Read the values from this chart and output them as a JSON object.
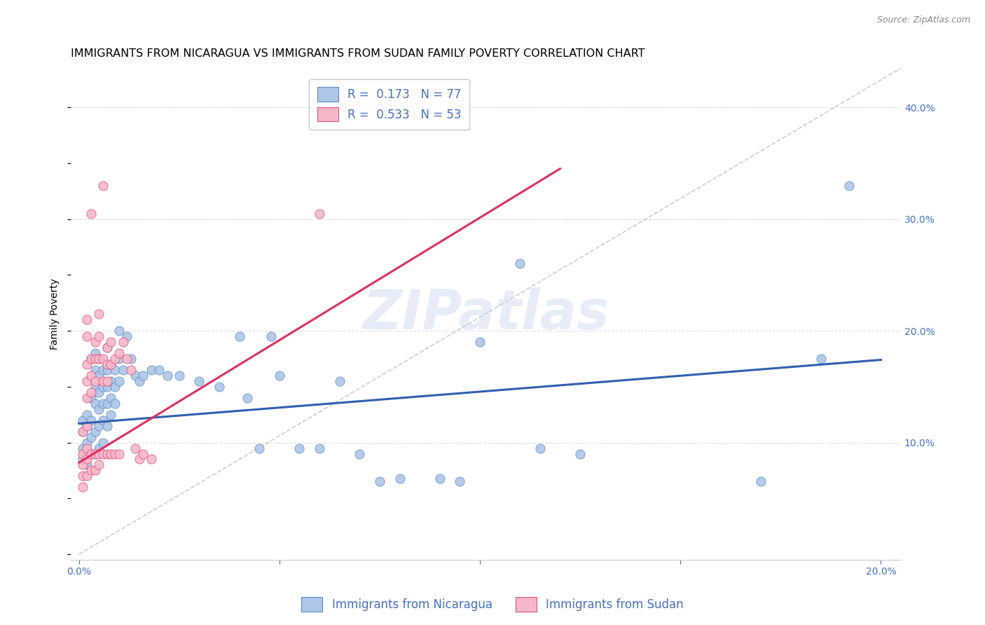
{
  "title": "IMMIGRANTS FROM NICARAGUA VS IMMIGRANTS FROM SUDAN FAMILY POVERTY CORRELATION CHART",
  "source": "Source: ZipAtlas.com",
  "ylabel_label": "Family Poverty",
  "xlim": [
    -0.002,
    0.205
  ],
  "ylim": [
    -0.005,
    0.435
  ],
  "xtick_positions": [
    0.0,
    0.05,
    0.1,
    0.15,
    0.2
  ],
  "xtick_labels": [
    "0.0%",
    "",
    "",
    "",
    "20.0%"
  ],
  "ytick_positions": [
    0.1,
    0.2,
    0.3,
    0.4
  ],
  "ytick_labels": [
    "10.0%",
    "20.0%",
    "30.0%",
    "40.0%"
  ],
  "color_nicaragua_fill": "#aec6e8",
  "color_nicaragua_edge": "#5b8ec4",
  "color_sudan_fill": "#f5b8c8",
  "color_sudan_edge": "#e05080",
  "color_line_nicaragua": "#3060b0",
  "color_line_sudan": "#e03060",
  "color_diagonal": "#bbbbbb",
  "nicaragua_line": [
    0.0,
    0.117,
    0.2,
    0.174
  ],
  "sudan_line": [
    0.0,
    0.082,
    0.12,
    0.345
  ],
  "diagonal_line": [
    0.0,
    0.0,
    0.205,
    0.435
  ],
  "nicaragua_scatter": [
    [
      0.001,
      0.12
    ],
    [
      0.001,
      0.11
    ],
    [
      0.001,
      0.095
    ],
    [
      0.001,
      0.085
    ],
    [
      0.002,
      0.125
    ],
    [
      0.002,
      0.115
    ],
    [
      0.002,
      0.1
    ],
    [
      0.002,
      0.09
    ],
    [
      0.002,
      0.08
    ],
    [
      0.003,
      0.175
    ],
    [
      0.003,
      0.14
    ],
    [
      0.003,
      0.12
    ],
    [
      0.003,
      0.105
    ],
    [
      0.003,
      0.09
    ],
    [
      0.004,
      0.18
    ],
    [
      0.004,
      0.165
    ],
    [
      0.004,
      0.15
    ],
    [
      0.004,
      0.135
    ],
    [
      0.004,
      0.11
    ],
    [
      0.004,
      0.09
    ],
    [
      0.005,
      0.175
    ],
    [
      0.005,
      0.16
    ],
    [
      0.005,
      0.145
    ],
    [
      0.005,
      0.13
    ],
    [
      0.005,
      0.115
    ],
    [
      0.005,
      0.095
    ],
    [
      0.006,
      0.165
    ],
    [
      0.006,
      0.15
    ],
    [
      0.006,
      0.135
    ],
    [
      0.006,
      0.12
    ],
    [
      0.006,
      0.1
    ],
    [
      0.007,
      0.185
    ],
    [
      0.007,
      0.165
    ],
    [
      0.007,
      0.15
    ],
    [
      0.007,
      0.135
    ],
    [
      0.007,
      0.115
    ],
    [
      0.008,
      0.17
    ],
    [
      0.008,
      0.155
    ],
    [
      0.008,
      0.14
    ],
    [
      0.008,
      0.125
    ],
    [
      0.009,
      0.165
    ],
    [
      0.009,
      0.15
    ],
    [
      0.009,
      0.135
    ],
    [
      0.01,
      0.2
    ],
    [
      0.01,
      0.175
    ],
    [
      0.01,
      0.155
    ],
    [
      0.011,
      0.165
    ],
    [
      0.012,
      0.195
    ],
    [
      0.013,
      0.175
    ],
    [
      0.014,
      0.16
    ],
    [
      0.015,
      0.155
    ],
    [
      0.016,
      0.16
    ],
    [
      0.018,
      0.165
    ],
    [
      0.02,
      0.165
    ],
    [
      0.022,
      0.16
    ],
    [
      0.025,
      0.16
    ],
    [
      0.03,
      0.155
    ],
    [
      0.035,
      0.15
    ],
    [
      0.04,
      0.195
    ],
    [
      0.042,
      0.14
    ],
    [
      0.045,
      0.095
    ],
    [
      0.048,
      0.195
    ],
    [
      0.05,
      0.16
    ],
    [
      0.055,
      0.095
    ],
    [
      0.06,
      0.095
    ],
    [
      0.065,
      0.155
    ],
    [
      0.07,
      0.09
    ],
    [
      0.075,
      0.065
    ],
    [
      0.08,
      0.068
    ],
    [
      0.09,
      0.068
    ],
    [
      0.095,
      0.065
    ],
    [
      0.1,
      0.19
    ],
    [
      0.11,
      0.26
    ],
    [
      0.115,
      0.095
    ],
    [
      0.125,
      0.09
    ],
    [
      0.17,
      0.065
    ],
    [
      0.185,
      0.175
    ],
    [
      0.192,
      0.33
    ]
  ],
  "sudan_scatter": [
    [
      0.001,
      0.11
    ],
    [
      0.001,
      0.09
    ],
    [
      0.001,
      0.08
    ],
    [
      0.001,
      0.07
    ],
    [
      0.001,
      0.06
    ],
    [
      0.002,
      0.21
    ],
    [
      0.002,
      0.195
    ],
    [
      0.002,
      0.17
    ],
    [
      0.002,
      0.155
    ],
    [
      0.002,
      0.14
    ],
    [
      0.002,
      0.115
    ],
    [
      0.002,
      0.095
    ],
    [
      0.002,
      0.085
    ],
    [
      0.002,
      0.07
    ],
    [
      0.003,
      0.305
    ],
    [
      0.003,
      0.175
    ],
    [
      0.003,
      0.16
    ],
    [
      0.003,
      0.145
    ],
    [
      0.003,
      0.09
    ],
    [
      0.003,
      0.075
    ],
    [
      0.004,
      0.19
    ],
    [
      0.004,
      0.175
    ],
    [
      0.004,
      0.155
    ],
    [
      0.004,
      0.09
    ],
    [
      0.004,
      0.075
    ],
    [
      0.005,
      0.215
    ],
    [
      0.005,
      0.195
    ],
    [
      0.005,
      0.175
    ],
    [
      0.005,
      0.09
    ],
    [
      0.005,
      0.08
    ],
    [
      0.006,
      0.33
    ],
    [
      0.006,
      0.175
    ],
    [
      0.006,
      0.155
    ],
    [
      0.006,
      0.09
    ],
    [
      0.007,
      0.185
    ],
    [
      0.007,
      0.17
    ],
    [
      0.007,
      0.155
    ],
    [
      0.007,
      0.09
    ],
    [
      0.008,
      0.19
    ],
    [
      0.008,
      0.17
    ],
    [
      0.008,
      0.09
    ],
    [
      0.009,
      0.175
    ],
    [
      0.009,
      0.09
    ],
    [
      0.01,
      0.18
    ],
    [
      0.01,
      0.09
    ],
    [
      0.011,
      0.19
    ],
    [
      0.012,
      0.175
    ],
    [
      0.013,
      0.165
    ],
    [
      0.014,
      0.095
    ],
    [
      0.015,
      0.085
    ],
    [
      0.016,
      0.09
    ],
    [
      0.018,
      0.085
    ],
    [
      0.06,
      0.305
    ]
  ],
  "title_fontsize": 11.5,
  "source_fontsize": 9,
  "axis_label_fontsize": 10,
  "tick_fontsize": 10,
  "legend_fontsize": 12,
  "watermark_text": "ZIPatlas",
  "watermark_color": "#c8d8f0",
  "watermark_alpha": 0.45
}
